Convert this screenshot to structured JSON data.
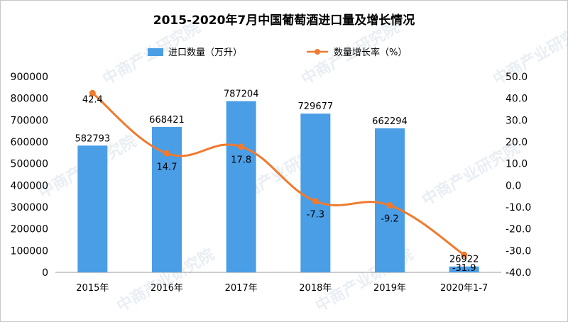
{
  "chart_data": {
    "type": "bar+line",
    "title": "2015-2020年7月中国葡萄酒进口量及增长情况",
    "categories": [
      "2015年",
      "2016年",
      "2017年",
      "2018年",
      "2019年",
      "2020年1-7"
    ],
    "series": [
      {
        "name": "进口数量（万升）",
        "type": "bar",
        "axis": "left",
        "values": [
          582793,
          668421,
          787204,
          729677,
          662294,
          26922
        ],
        "labels": [
          "582793",
          "668421",
          "787204",
          "729677",
          "662294",
          "26922"
        ],
        "color": "#4a9ee6"
      },
      {
        "name": "数量增长率（%）",
        "type": "line",
        "axis": "right",
        "values": [
          42.4,
          14.7,
          17.8,
          -7.3,
          -9.2,
          -31.9
        ],
        "labels": [
          "42.4",
          "14.7",
          "17.8",
          "-7.3",
          "-9.2",
          "-31.9"
        ],
        "color": "#f07a2e"
      }
    ],
    "y_left": {
      "range": [
        0,
        900000
      ],
      "ticks": [
        "0",
        "100000",
        "200000",
        "300000",
        "400000",
        "500000",
        "600000",
        "700000",
        "800000",
        "900000"
      ]
    },
    "y_right": {
      "range": [
        -40,
        50
      ],
      "ticks": [
        "-40.0",
        "-30.0",
        "-20.0",
        "-10.0",
        "0.0",
        "10.0",
        "20.0",
        "30.0",
        "40.0",
        "50.0"
      ]
    },
    "legend_position": "top-center",
    "grid": false
  },
  "watermark": "中商产业研究院"
}
